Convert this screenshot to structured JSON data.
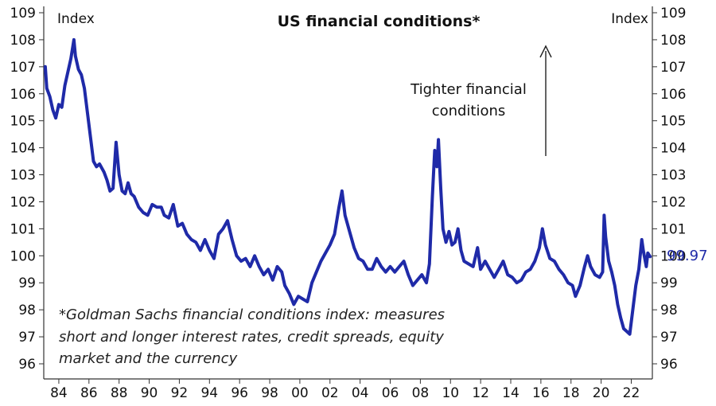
{
  "chart_data": {
    "type": "line",
    "title": "US financial conditions*",
    "y_unit_left": "Index",
    "y_unit_right": "Index",
    "ylim": [
      96,
      109
    ],
    "y_ticks": [
      96,
      97,
      98,
      99,
      100,
      101,
      102,
      103,
      104,
      105,
      106,
      107,
      108,
      109
    ],
    "xlim": [
      1983,
      2023.4
    ],
    "x_ticks": [
      {
        "value": 1984,
        "label": "84"
      },
      {
        "value": 1986,
        "label": "86"
      },
      {
        "value": 1988,
        "label": "88"
      },
      {
        "value": 1990,
        "label": "90"
      },
      {
        "value": 1992,
        "label": "92"
      },
      {
        "value": 1994,
        "label": "94"
      },
      {
        "value": 1996,
        "label": "96"
      },
      {
        "value": 1998,
        "label": "98"
      },
      {
        "value": 2000,
        "label": "00"
      },
      {
        "value": 2002,
        "label": "02"
      },
      {
        "value": 2004,
        "label": "04"
      },
      {
        "value": 2006,
        "label": "06"
      },
      {
        "value": 2008,
        "label": "08"
      },
      {
        "value": 2010,
        "label": "10"
      },
      {
        "value": 2012,
        "label": "12"
      },
      {
        "value": 2014,
        "label": "14"
      },
      {
        "value": 2016,
        "label": "16"
      },
      {
        "value": 2018,
        "label": "18"
      },
      {
        "value": 2020,
        "label": "20"
      },
      {
        "value": 2022,
        "label": "22"
      }
    ],
    "annotation_lines": [
      "Tighter financial",
      "conditions"
    ],
    "footnote_lines": [
      "*Goldman Sachs financial conditions index: measures",
      "short and longer interest rates, credit spreads, equity",
      "market and the currency"
    ],
    "last_value_label": "99.97",
    "grid": false,
    "colors": {
      "line": "#1f2aa8",
      "last_value": "#1f2aa8",
      "axis": "#333333"
    },
    "series": [
      {
        "values": [
          [
            1983.1,
            107.0
          ],
          [
            1983.2,
            106.2
          ],
          [
            1983.4,
            105.9
          ],
          [
            1983.6,
            105.4
          ],
          [
            1983.8,
            105.1
          ],
          [
            1984.0,
            105.6
          ],
          [
            1984.2,
            105.5
          ],
          [
            1984.4,
            106.3
          ],
          [
            1984.6,
            106.8
          ],
          [
            1984.8,
            107.3
          ],
          [
            1985.0,
            108.0
          ],
          [
            1985.1,
            107.4
          ],
          [
            1985.3,
            106.9
          ],
          [
            1985.5,
            106.7
          ],
          [
            1985.7,
            106.2
          ],
          [
            1985.9,
            105.3
          ],
          [
            1986.1,
            104.4
          ],
          [
            1986.3,
            103.5
          ],
          [
            1986.5,
            103.3
          ],
          [
            1986.7,
            103.4
          ],
          [
            1987.0,
            103.1
          ],
          [
            1987.2,
            102.8
          ],
          [
            1987.4,
            102.4
          ],
          [
            1987.6,
            102.5
          ],
          [
            1987.8,
            104.2
          ],
          [
            1988.0,
            103.0
          ],
          [
            1988.2,
            102.4
          ],
          [
            1988.4,
            102.3
          ],
          [
            1988.6,
            102.7
          ],
          [
            1988.8,
            102.3
          ],
          [
            1989.0,
            102.2
          ],
          [
            1989.3,
            101.8
          ],
          [
            1989.6,
            101.6
          ],
          [
            1989.9,
            101.5
          ],
          [
            1990.2,
            101.9
          ],
          [
            1990.5,
            101.8
          ],
          [
            1990.8,
            101.8
          ],
          [
            1991.0,
            101.5
          ],
          [
            1991.3,
            101.4
          ],
          [
            1991.6,
            101.9
          ],
          [
            1991.9,
            101.1
          ],
          [
            1992.2,
            101.2
          ],
          [
            1992.5,
            100.8
          ],
          [
            1992.8,
            100.6
          ],
          [
            1993.1,
            100.5
          ],
          [
            1993.4,
            100.2
          ],
          [
            1993.7,
            100.6
          ],
          [
            1994.0,
            100.2
          ],
          [
            1994.3,
            99.9
          ],
          [
            1994.6,
            100.8
          ],
          [
            1994.9,
            101.0
          ],
          [
            1995.2,
            101.3
          ],
          [
            1995.5,
            100.6
          ],
          [
            1995.8,
            100.0
          ],
          [
            1996.1,
            99.8
          ],
          [
            1996.4,
            99.9
          ],
          [
            1996.7,
            99.6
          ],
          [
            1997.0,
            100.0
          ],
          [
            1997.3,
            99.6
          ],
          [
            1997.6,
            99.3
          ],
          [
            1997.9,
            99.5
          ],
          [
            1998.2,
            99.1
          ],
          [
            1998.5,
            99.6
          ],
          [
            1998.8,
            99.4
          ],
          [
            1999.0,
            98.9
          ],
          [
            1999.3,
            98.6
          ],
          [
            1999.6,
            98.2
          ],
          [
            1999.9,
            98.5
          ],
          [
            2000.2,
            98.4
          ],
          [
            2000.5,
            98.3
          ],
          [
            2000.8,
            99.0
          ],
          [
            2001.1,
            99.4
          ],
          [
            2001.4,
            99.8
          ],
          [
            2001.7,
            100.1
          ],
          [
            2002.0,
            100.4
          ],
          [
            2002.3,
            100.8
          ],
          [
            2002.6,
            101.8
          ],
          [
            2002.8,
            102.4
          ],
          [
            2003.0,
            101.5
          ],
          [
            2003.3,
            100.9
          ],
          [
            2003.6,
            100.3
          ],
          [
            2003.9,
            99.9
          ],
          [
            2004.2,
            99.8
          ],
          [
            2004.5,
            99.5
          ],
          [
            2004.8,
            99.5
          ],
          [
            2005.1,
            99.9
          ],
          [
            2005.4,
            99.6
          ],
          [
            2005.7,
            99.4
          ],
          [
            2006.0,
            99.6
          ],
          [
            2006.3,
            99.4
          ],
          [
            2006.6,
            99.6
          ],
          [
            2006.9,
            99.8
          ],
          [
            2007.2,
            99.3
          ],
          [
            2007.5,
            98.9
          ],
          [
            2007.8,
            99.1
          ],
          [
            2008.1,
            99.3
          ],
          [
            2008.4,
            99.0
          ],
          [
            2008.6,
            99.7
          ],
          [
            2008.8,
            102.2
          ],
          [
            2008.95,
            103.9
          ],
          [
            2009.1,
            103.3
          ],
          [
            2009.2,
            104.3
          ],
          [
            2009.35,
            102.5
          ],
          [
            2009.5,
            101.0
          ],
          [
            2009.7,
            100.5
          ],
          [
            2009.9,
            100.9
          ],
          [
            2010.1,
            100.4
          ],
          [
            2010.3,
            100.5
          ],
          [
            2010.5,
            101.0
          ],
          [
            2010.7,
            100.2
          ],
          [
            2010.9,
            99.8
          ],
          [
            2011.2,
            99.7
          ],
          [
            2011.5,
            99.6
          ],
          [
            2011.8,
            100.3
          ],
          [
            2012.0,
            99.5
          ],
          [
            2012.3,
            99.8
          ],
          [
            2012.6,
            99.5
          ],
          [
            2012.9,
            99.2
          ],
          [
            2013.2,
            99.5
          ],
          [
            2013.5,
            99.8
          ],
          [
            2013.8,
            99.3
          ],
          [
            2014.1,
            99.2
          ],
          [
            2014.4,
            99.0
          ],
          [
            2014.7,
            99.1
          ],
          [
            2015.0,
            99.4
          ],
          [
            2015.3,
            99.5
          ],
          [
            2015.6,
            99.8
          ],
          [
            2015.9,
            100.3
          ],
          [
            2016.1,
            101.0
          ],
          [
            2016.3,
            100.4
          ],
          [
            2016.6,
            99.9
          ],
          [
            2016.9,
            99.8
          ],
          [
            2017.2,
            99.5
          ],
          [
            2017.5,
            99.3
          ],
          [
            2017.8,
            99.0
          ],
          [
            2018.1,
            98.9
          ],
          [
            2018.3,
            98.5
          ],
          [
            2018.6,
            98.9
          ],
          [
            2018.9,
            99.6
          ],
          [
            2019.1,
            100.0
          ],
          [
            2019.3,
            99.6
          ],
          [
            2019.6,
            99.3
          ],
          [
            2019.9,
            99.2
          ],
          [
            2020.1,
            99.4
          ],
          [
            2020.2,
            101.5
          ],
          [
            2020.3,
            100.7
          ],
          [
            2020.5,
            99.8
          ],
          [
            2020.7,
            99.4
          ],
          [
            2020.9,
            98.9
          ],
          [
            2021.1,
            98.2
          ],
          [
            2021.3,
            97.7
          ],
          [
            2021.5,
            97.3
          ],
          [
            2021.7,
            97.2
          ],
          [
            2021.9,
            97.1
          ],
          [
            2022.1,
            98.0
          ],
          [
            2022.3,
            98.9
          ],
          [
            2022.5,
            99.5
          ],
          [
            2022.7,
            100.6
          ],
          [
            2022.8,
            100.2
          ],
          [
            2022.9,
            99.9
          ],
          [
            2023.0,
            99.6
          ],
          [
            2023.1,
            100.1
          ],
          [
            2023.25,
            99.97
          ]
        ]
      }
    ]
  }
}
